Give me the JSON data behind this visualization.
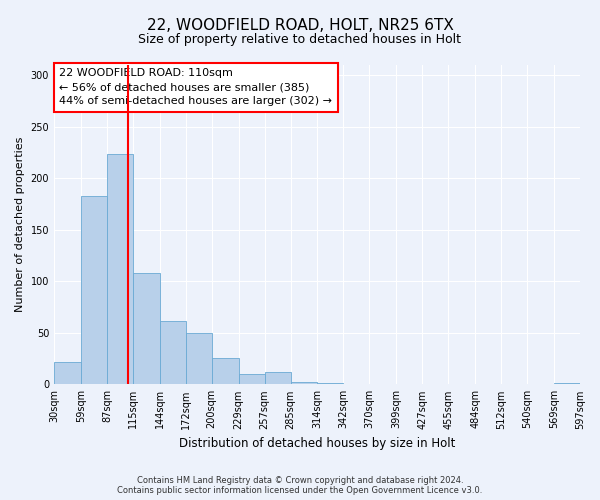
{
  "title": "22, WOODFIELD ROAD, HOLT, NR25 6TX",
  "subtitle": "Size of property relative to detached houses in Holt",
  "xlabel": "Distribution of detached houses by size in Holt",
  "ylabel": "Number of detached properties",
  "bin_edges": [
    30,
    59,
    87,
    115,
    144,
    172,
    200,
    229,
    257,
    285,
    314,
    342,
    370,
    399,
    427,
    455,
    484,
    512,
    540,
    569,
    597
  ],
  "bar_heights": [
    22,
    183,
    224,
    108,
    61,
    50,
    26,
    10,
    12,
    2,
    1,
    0,
    0,
    0,
    0,
    0,
    0,
    0,
    0,
    1
  ],
  "bar_color": "#b8d0ea",
  "bar_edgecolor": "#6aaad4",
  "vline_x": 110,
  "vline_color": "red",
  "annotation_text": "22 WOODFIELD ROAD: 110sqm\n← 56% of detached houses are smaller (385)\n44% of semi-detached houses are larger (302) →",
  "annotation_box_edgecolor": "red",
  "ylim": [
    0,
    310
  ],
  "yticks": [
    0,
    50,
    100,
    150,
    200,
    250,
    300
  ],
  "background_color": "#edf2fb",
  "grid_color": "white",
  "footer_line1": "Contains HM Land Registry data © Crown copyright and database right 2024.",
  "footer_line2": "Contains public sector information licensed under the Open Government Licence v3.0."
}
